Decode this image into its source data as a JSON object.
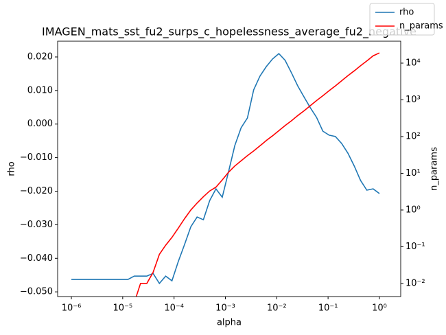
{
  "chart_data": {
    "type": "line",
    "title": "IMAGEN_mats_sst_fu2_surps_c_hopelessness_average_fu2_negative",
    "xlabel": "alpha",
    "ylabel": "rho",
    "y2label": "n_params",
    "xscale": "log",
    "y2scale": "log",
    "legend": "upper right",
    "x": [
      1e-06,
      1.326e-06,
      1.758e-06,
      2.33e-06,
      3.089e-06,
      4.095e-06,
      5.429e-06,
      7.197e-06,
      9.541e-06,
      1.265e-05,
      1.677e-05,
      2.223e-05,
      2.947e-05,
      3.907e-05,
      5.179e-05,
      6.866e-05,
      9.103e-05,
      0.0001207,
      0.00016,
      0.0002121,
      0.0002812,
      0.0003728,
      0.0004942,
      0.0006551,
      0.0008685,
      0.001151,
      0.001526,
      0.002024,
      0.002683,
      0.003556,
      0.004715,
      0.006251,
      0.008286,
      0.01099,
      0.01456,
      0.01931,
      0.0256,
      0.03393,
      0.04498,
      0.05964,
      0.07906,
      0.1048,
      0.1389,
      0.1842,
      0.2442,
      0.3237,
      0.4292,
      0.569,
      0.7543,
      1
    ],
    "series": [
      {
        "name": "rho",
        "color": "#1f77b4",
        "axis": "y",
        "values": [
          -0.0463,
          -0.0463,
          -0.0463,
          -0.0463,
          -0.0463,
          -0.0463,
          -0.0463,
          -0.0463,
          -0.0463,
          -0.0463,
          -0.0453,
          -0.0453,
          -0.0453,
          -0.0445,
          -0.0475,
          -0.0453,
          -0.0467,
          -0.041,
          -0.0359,
          -0.0306,
          -0.0277,
          -0.0285,
          -0.0228,
          -0.0193,
          -0.0218,
          -0.0142,
          -0.0064,
          -0.0011,
          0.0018,
          0.0102,
          0.0143,
          0.0171,
          0.0194,
          0.021,
          0.019,
          0.0153,
          0.0114,
          0.0081,
          0.0049,
          0.002,
          -0.0021,
          -0.0033,
          -0.0037,
          -0.0058,
          -0.0087,
          -0.0125,
          -0.0168,
          -0.0197,
          -0.0193,
          -0.0207
        ]
      },
      {
        "name": "n_params",
        "color": "#ff0000",
        "axis": "y2",
        "values": [
          null,
          null,
          null,
          null,
          null,
          null,
          null,
          null,
          null,
          null,
          0.003,
          0.01,
          0.01,
          0.02,
          0.062,
          0.11,
          0.18,
          0.32,
          0.58,
          1.0,
          1.55,
          2.3,
          3.3,
          4.2,
          6.6,
          10.7,
          15.8,
          21.9,
          30.2,
          40.7,
          56,
          78,
          105,
          145,
          200,
          269,
          372,
          501,
          692,
          955,
          1290,
          1780,
          2400,
          3310,
          4570,
          6170,
          8510,
          11500,
          15800,
          19000
        ]
      }
    ],
    "xlim": [
      5.4e-07,
      2.6
    ],
    "xticks": [
      {
        "value": 1e-06,
        "label": "10⁻⁶"
      },
      {
        "value": 1e-05,
        "label": "10⁻⁵"
      },
      {
        "value": 0.0001,
        "label": "10⁻⁴"
      },
      {
        "value": 0.001,
        "label": "10⁻³"
      },
      {
        "value": 0.01,
        "label": "10⁻²"
      },
      {
        "value": 0.1,
        "label": "10⁻¹"
      },
      {
        "value": 1,
        "label": "10⁰"
      }
    ],
    "ylim": [
      -0.0514,
      0.0247
    ],
    "yticks": [
      {
        "value": -0.05,
        "label": "−0.050"
      },
      {
        "value": -0.04,
        "label": "−0.040"
      },
      {
        "value": -0.03,
        "label": "−0.030"
      },
      {
        "value": -0.02,
        "label": "−0.020"
      },
      {
        "value": -0.01,
        "label": "−0.010"
      },
      {
        "value": 0,
        "label": "0.000"
      },
      {
        "value": 0.01,
        "label": "0.010"
      },
      {
        "value": 0.02,
        "label": "0.020"
      }
    ],
    "y2lim": [
      0.0044,
      39600
    ],
    "y2ticks": [
      {
        "value": 0.01,
        "label": "10⁻²"
      },
      {
        "value": 0.1,
        "label": "10⁻¹"
      },
      {
        "value": 1,
        "label": "10⁰"
      },
      {
        "value": 10,
        "label": "10¹"
      },
      {
        "value": 100,
        "label": "10²"
      },
      {
        "value": 1000,
        "label": "10³"
      },
      {
        "value": 10000,
        "label": "10⁴"
      }
    ]
  }
}
